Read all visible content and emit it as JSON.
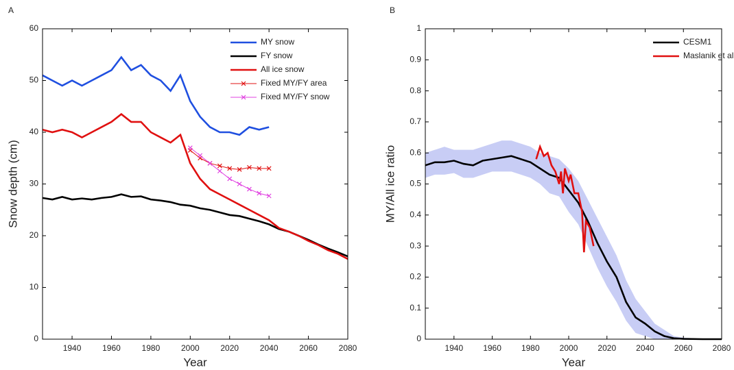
{
  "chart_data": [
    {
      "type": "line",
      "panel_label": "A",
      "xlabel": "Year",
      "ylabel": "Snow depth (cm)",
      "xlim": [
        1925,
        2080
      ],
      "ylim": [
        0,
        60
      ],
      "xticks": [
        1940,
        1960,
        1980,
        2000,
        2020,
        2040,
        2060,
        2080
      ],
      "yticks": [
        0,
        10,
        20,
        30,
        40,
        50,
        60
      ],
      "legend": "upper right",
      "series": [
        {
          "name": "MY snow",
          "color": "#1f4fe0",
          "marker": "none",
          "x": [
            1925,
            1930,
            1935,
            1940,
            1945,
            1950,
            1955,
            1960,
            1965,
            1970,
            1975,
            1980,
            1985,
            1990,
            1995,
            2000,
            2005,
            2010,
            2015,
            2020,
            2025,
            2030,
            2035,
            2040
          ],
          "values": [
            51,
            50,
            49,
            50,
            49,
            50,
            51,
            52,
            54.5,
            52,
            53,
            51,
            50,
            48,
            51,
            46,
            43,
            41,
            40,
            40,
            39.5,
            41,
            40.5,
            41
          ]
        },
        {
          "name": "FY snow",
          "color": "#000000",
          "marker": "none",
          "x": [
            1925,
            1930,
            1935,
            1940,
            1945,
            1950,
            1955,
            1960,
            1965,
            1970,
            1975,
            1980,
            1985,
            1990,
            1995,
            2000,
            2005,
            2010,
            2015,
            2020,
            2025,
            2030,
            2035,
            2040,
            2045,
            2050,
            2055,
            2060,
            2065,
            2070,
            2075,
            2080
          ],
          "values": [
            27.3,
            27,
            27.5,
            27,
            27.2,
            27,
            27.3,
            27.5,
            28,
            27.5,
            27.6,
            27,
            26.8,
            26.5,
            26,
            25.8,
            25.3,
            25,
            24.5,
            24,
            23.8,
            23.3,
            22.8,
            22.2,
            21.3,
            20.8,
            20,
            19.2,
            18.3,
            17.5,
            16.8,
            16
          ]
        },
        {
          "name": "All ice snow",
          "color": "#e01010",
          "marker": "none",
          "x": [
            1925,
            1930,
            1935,
            1940,
            1945,
            1950,
            1955,
            1960,
            1965,
            1970,
            1975,
            1980,
            1985,
            1990,
            1995,
            2000,
            2005,
            2010,
            2015,
            2020,
            2025,
            2030,
            2035,
            2040,
            2045,
            2050,
            2055,
            2060,
            2065,
            2070,
            2075,
            2080
          ],
          "values": [
            40.5,
            40,
            40.5,
            40,
            39,
            40,
            41,
            42,
            43.5,
            42,
            42,
            40,
            39,
            38,
            39.5,
            34,
            31,
            29,
            28,
            27,
            26,
            25,
            24,
            23,
            21.5,
            20.8,
            20,
            19,
            18.2,
            17.2,
            16.5,
            15.5
          ]
        },
        {
          "name": "Fixed MY/FY area",
          "color": "#e01010",
          "marker": "x",
          "x": [
            2000,
            2005,
            2010,
            2015,
            2020,
            2025,
            2030,
            2035,
            2040
          ],
          "values": [
            36.5,
            35,
            34,
            33.5,
            33,
            32.8,
            33.2,
            33,
            33
          ]
        },
        {
          "name": "Fixed MY/FY snow",
          "color": "#e040e0",
          "marker": "x",
          "x": [
            2000,
            2005,
            2010,
            2015,
            2020,
            2025,
            2030,
            2035,
            2040
          ],
          "values": [
            37,
            35.5,
            34,
            32.5,
            31,
            30,
            29,
            28.2,
            27.7
          ]
        }
      ]
    },
    {
      "type": "line",
      "panel_label": "B",
      "xlabel": "Year",
      "ylabel": "MY/All ice ratio",
      "xlim": [
        1925,
        2080
      ],
      "ylim": [
        0,
        1
      ],
      "xticks": [
        1940,
        1960,
        1980,
        2000,
        2020,
        2040,
        2060,
        2080
      ],
      "yticks": [
        0,
        0.1,
        0.2,
        0.3,
        0.4,
        0.5,
        0.6,
        0.7,
        0.8,
        0.9,
        1
      ],
      "legend": "upper right",
      "band": {
        "color": "#c8cdf5",
        "x": [
          1925,
          1930,
          1935,
          1940,
          1945,
          1950,
          1955,
          1960,
          1965,
          1970,
          1975,
          1980,
          1985,
          1990,
          1995,
          2000,
          2005,
          2010,
          2015,
          2020,
          2025,
          2030,
          2035,
          2040,
          2045,
          2050,
          2055,
          2060,
          2070,
          2080
        ],
        "lower": [
          0.52,
          0.53,
          0.53,
          0.535,
          0.52,
          0.52,
          0.53,
          0.54,
          0.54,
          0.54,
          0.53,
          0.52,
          0.5,
          0.47,
          0.46,
          0.41,
          0.37,
          0.3,
          0.23,
          0.17,
          0.12,
          0.06,
          0.02,
          0.01,
          0,
          0,
          0,
          0,
          0,
          0
        ],
        "upper": [
          0.6,
          0.61,
          0.62,
          0.61,
          0.61,
          0.61,
          0.62,
          0.63,
          0.64,
          0.64,
          0.63,
          0.62,
          0.6,
          0.59,
          0.58,
          0.55,
          0.51,
          0.45,
          0.39,
          0.33,
          0.27,
          0.19,
          0.13,
          0.09,
          0.05,
          0.03,
          0.01,
          0.005,
          0,
          0
        ]
      },
      "series": [
        {
          "name": "CESM1",
          "color": "#000000",
          "marker": "none",
          "x": [
            1925,
            1930,
            1935,
            1940,
            1945,
            1950,
            1955,
            1960,
            1965,
            1970,
            1975,
            1980,
            1985,
            1990,
            1995,
            2000,
            2005,
            2010,
            2015,
            2020,
            2025,
            2030,
            2035,
            2040,
            2045,
            2050,
            2055,
            2060,
            2070,
            2080
          ],
          "values": [
            0.56,
            0.57,
            0.57,
            0.575,
            0.565,
            0.56,
            0.575,
            0.58,
            0.585,
            0.59,
            0.58,
            0.57,
            0.55,
            0.53,
            0.52,
            0.48,
            0.44,
            0.38,
            0.31,
            0.25,
            0.2,
            0.12,
            0.07,
            0.05,
            0.025,
            0.01,
            0.003,
            0.001,
            0,
            0
          ]
        },
        {
          "name": "Maslanik et al",
          "color": "#e01010",
          "marker": "none",
          "x": [
            1983,
            1985,
            1987,
            1989,
            1991,
            1993,
            1995,
            1996,
            1997,
            1998,
            2000,
            2001,
            2003,
            2005,
            2007,
            2008,
            2009,
            2011,
            2013
          ],
          "values": [
            0.58,
            0.62,
            0.59,
            0.6,
            0.56,
            0.54,
            0.5,
            0.54,
            0.47,
            0.55,
            0.51,
            0.53,
            0.47,
            0.47,
            0.41,
            0.28,
            0.38,
            0.36,
            0.3
          ]
        }
      ]
    }
  ]
}
